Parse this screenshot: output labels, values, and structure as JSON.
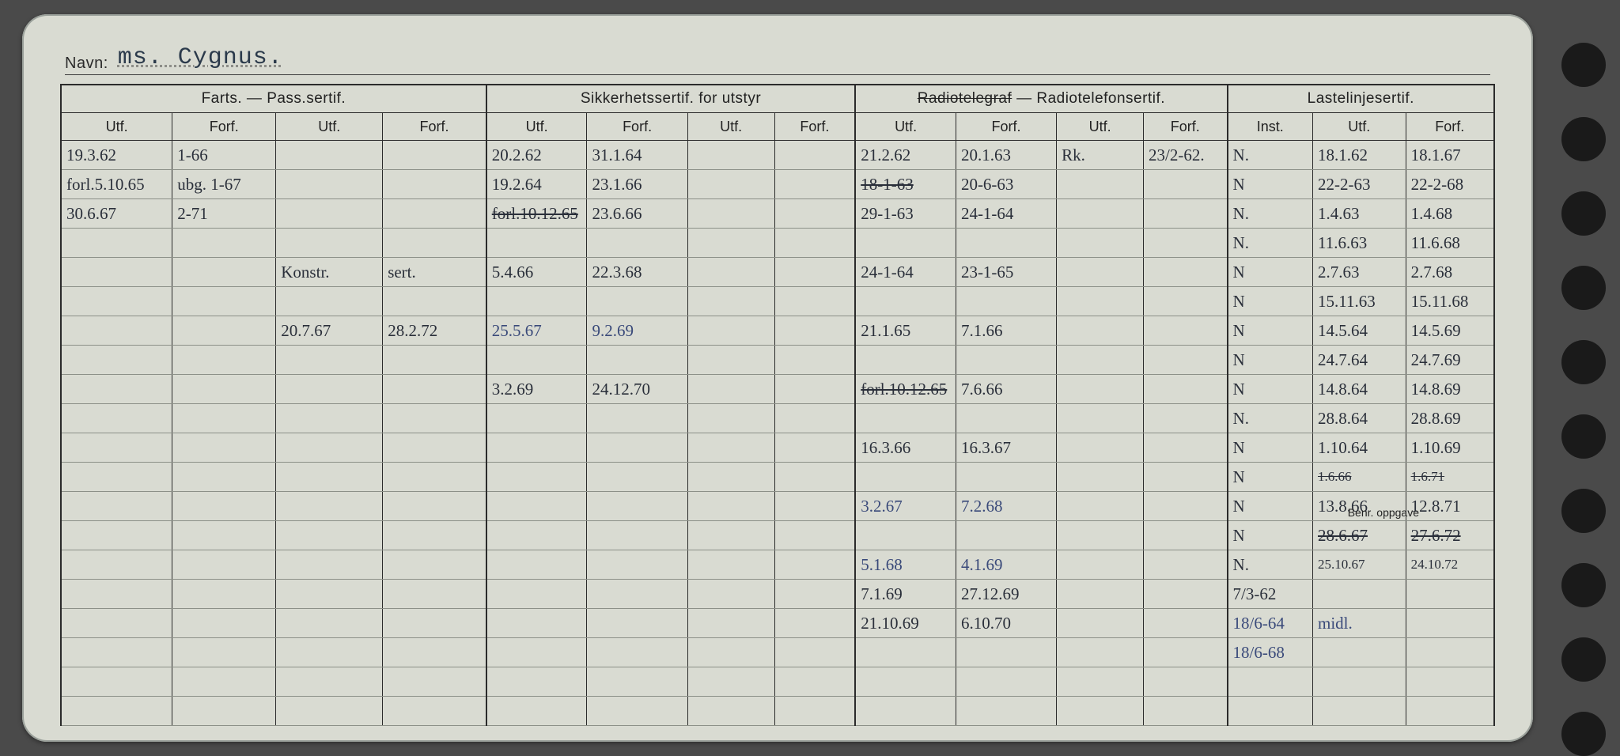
{
  "name_label": "Navn:",
  "name_value": "ms. Cygnus.",
  "colors": {
    "card_bg": "#d9dbd2",
    "ink": "#2a2f3a",
    "ink_blue": "#3a4a7a",
    "rule": "#2b2b2b",
    "page_bg": "#4a4a4a"
  },
  "headers": {
    "group1": "Farts. — Pass.sertif.",
    "group2": "Sikkerhetssertif. for utstyr",
    "group3_a": "Radiotelegraf",
    "group3_b": " — Radiotelefonsertif.",
    "group4": "Lastelinjesertif.",
    "sub": [
      "Utf.",
      "Forf.",
      "Utf.",
      "Forf.",
      "Utf.",
      "Forf.",
      "Utf.",
      "Forf.",
      "Utf.",
      "Forf.",
      "Utf.",
      "Forf.",
      "Inst.",
      "Utf.",
      "Forf."
    ]
  },
  "benr_label": "Benr. oppgave",
  "rows": [
    {
      "c": [
        "19.3.62",
        "1-66",
        "",
        "",
        "20.2.62",
        "31.1.64",
        "",
        "",
        "21.2.62",
        "20.1.63",
        "Rk.",
        "23/2-62.",
        "N.",
        "18.1.62",
        "18.1.67"
      ]
    },
    {
      "c": [
        "forl.5.10.65",
        "ubg. 1-67",
        "",
        "",
        "19.2.64",
        "23.1.66",
        "",
        "",
        "18-1-63",
        "20-6-63",
        "",
        "",
        "N",
        "22-2-63",
        "22-2-68"
      ],
      "strike": [
        8
      ]
    },
    {
      "c": [
        "30.6.67",
        "2-71",
        "",
        "",
        "forl.10.12.65",
        "23.6.66",
        "",
        "",
        "29-1-63",
        "24-1-64",
        "",
        "",
        "N.",
        "1.4.63",
        "1.4.68"
      ],
      "strike": [
        4
      ]
    },
    {
      "c": [
        "",
        "",
        "",
        "",
        "",
        "",
        "",
        "",
        "",
        "",
        "",
        "",
        "N.",
        "11.6.63",
        "11.6.68"
      ]
    },
    {
      "c": [
        "",
        "",
        "Konstr.",
        "sert.",
        "5.4.66",
        "22.3.68",
        "",
        "",
        "24-1-64",
        "23-1-65",
        "",
        "",
        "N",
        "2.7.63",
        "2.7.68"
      ]
    },
    {
      "c": [
        "",
        "",
        "",
        "",
        "",
        "",
        "",
        "",
        "",
        "",
        "",
        "",
        "N",
        "15.11.63",
        "15.11.68"
      ]
    },
    {
      "c": [
        "",
        "",
        "20.7.67",
        "28.2.72",
        "25.5.67",
        "9.2.69",
        "",
        "",
        "21.1.65",
        "7.1.66",
        "",
        "",
        "N",
        "14.5.64",
        "14.5.69"
      ],
      "blue": [
        4,
        5
      ]
    },
    {
      "c": [
        "",
        "",
        "",
        "",
        "",
        "",
        "",
        "",
        "",
        "",
        "",
        "",
        "N",
        "24.7.64",
        "24.7.69"
      ]
    },
    {
      "c": [
        "",
        "",
        "",
        "",
        "3.2.69",
        "24.12.70",
        "",
        "",
        "forl.10.12.65",
        "7.6.66",
        "",
        "",
        "N",
        "14.8.64",
        "14.8.69"
      ],
      "strike": [
        8
      ]
    },
    {
      "c": [
        "",
        "",
        "",
        "",
        "",
        "",
        "",
        "",
        "",
        "",
        "",
        "",
        "N.",
        "28.8.64",
        "28.8.69"
      ]
    },
    {
      "c": [
        "",
        "",
        "",
        "",
        "",
        "",
        "",
        "",
        "16.3.66",
        "16.3.67",
        "",
        "",
        "N",
        "1.10.64",
        "1.10.69"
      ]
    },
    {
      "c": [
        "",
        "",
        "",
        "",
        "",
        "",
        "",
        "",
        "",
        "",
        "",
        "",
        "N",
        "1.6.66",
        "1.6.71"
      ],
      "small": [
        13,
        14
      ],
      "strike": [
        13,
        14
      ]
    },
    {
      "c": [
        "",
        "",
        "",
        "",
        "",
        "",
        "",
        "",
        "3.2.67",
        "7.2.68",
        "",
        "",
        "N",
        "13.8.66",
        "12.8.71"
      ],
      "blue": [
        8,
        9
      ]
    },
    {
      "c": [
        "",
        "",
        "",
        "",
        "",
        "",
        "",
        "",
        "",
        "",
        "",
        "",
        "N",
        "28.6.67",
        "27.6.72"
      ],
      "strike": [
        13,
        14
      ]
    },
    {
      "c": [
        "",
        "",
        "",
        "",
        "",
        "",
        "",
        "",
        "5.1.68",
        "4.1.69",
        "",
        "",
        "N.",
        "25.10.67",
        "24.10.72"
      ],
      "blue": [
        8,
        9
      ],
      "small": [
        13,
        14
      ]
    },
    {
      "c": [
        "",
        "",
        "",
        "",
        "",
        "",
        "",
        "",
        "7.1.69",
        "27.12.69",
        "",
        "",
        "7/3-62",
        "",
        ""
      ]
    },
    {
      "c": [
        "",
        "",
        "",
        "",
        "",
        "",
        "",
        "",
        "21.10.69",
        "6.10.70",
        "",
        "",
        "18/6-64",
        "midl.",
        ""
      ],
      "blue": [
        12,
        13
      ]
    },
    {
      "c": [
        "",
        "",
        "",
        "",
        "",
        "",
        "",
        "",
        "",
        "",
        "",
        "",
        "18/6-68",
        "",
        ""
      ],
      "blue": [
        12
      ]
    },
    {
      "c": [
        "",
        "",
        "",
        "",
        "",
        "",
        "",
        "",
        "",
        "",
        "",
        "",
        "",
        "",
        ""
      ]
    },
    {
      "c": [
        "",
        "",
        "",
        "",
        "",
        "",
        "",
        "",
        "",
        "",
        "",
        "",
        "",
        "",
        ""
      ]
    }
  ]
}
